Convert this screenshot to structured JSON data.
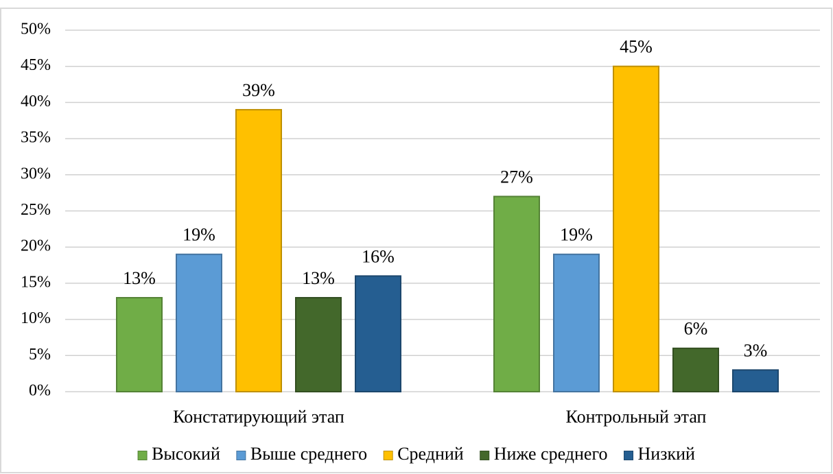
{
  "chart_data": {
    "type": "bar",
    "categories": [
      "Констатирующий этап",
      "Контрольный этап"
    ],
    "series": [
      {
        "name": "Высокий",
        "color": "#70ad47",
        "values": [
          13,
          27
        ],
        "value_labels": [
          "13%",
          "27%"
        ]
      },
      {
        "name": "Выше среднего",
        "color": "#5b9bd5",
        "values": [
          19,
          19
        ],
        "value_labels": [
          "19%",
          "19%"
        ]
      },
      {
        "name": "Средний",
        "color": "#ffc000",
        "values": [
          39,
          45
        ],
        "value_labels": [
          "39%",
          "45%"
        ]
      },
      {
        "name": "Ниже среднего",
        "color": "#43682b",
        "values": [
          13,
          6
        ],
        "value_labels": [
          "13%",
          "6%"
        ]
      },
      {
        "name": "Низкий",
        "color": "#255e91",
        "values": [
          16,
          3
        ],
        "value_labels": [
          "16%",
          "3%"
        ]
      }
    ],
    "ylim": [
      0,
      50
    ],
    "yticks": [
      {
        "value": 0,
        "label": "0%"
      },
      {
        "value": 5,
        "label": "5%"
      },
      {
        "value": 10,
        "label": "10%"
      },
      {
        "value": 15,
        "label": "15%"
      },
      {
        "value": 20,
        "label": "20%"
      },
      {
        "value": 25,
        "label": "25%"
      },
      {
        "value": 30,
        "label": "30%"
      },
      {
        "value": 35,
        "label": "35%"
      },
      {
        "value": 40,
        "label": "40%"
      },
      {
        "value": 45,
        "label": "45%"
      },
      {
        "value": 50,
        "label": "50%"
      }
    ],
    "grid": true,
    "legend": "bottom"
  }
}
